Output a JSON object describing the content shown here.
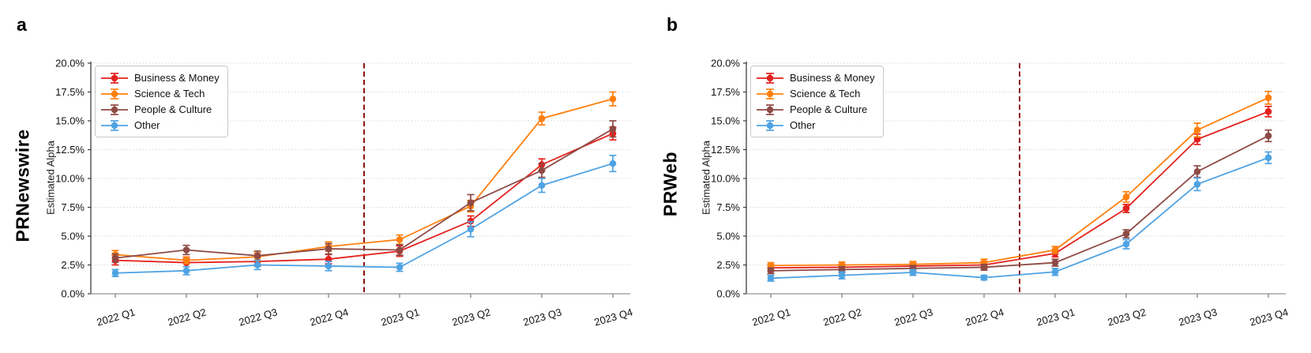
{
  "figure": {
    "background": "#ffffff",
    "panels": [
      {
        "panel_label": "a",
        "row_label": "PRNewswire"
      },
      {
        "panel_label": "b",
        "row_label": "PRWeb"
      }
    ]
  },
  "chart_data": [
    {
      "type": "line",
      "panel": "a",
      "title": "PRNewswire",
      "ylabel": "Estimated Alpha",
      "xlabel": "",
      "ylim": [
        0,
        20
      ],
      "grid": "horizontal-dotted",
      "legend_position": "upper-left",
      "x_tick_rotation_deg": -16,
      "yticks": [
        {
          "value": 0,
          "label": "0.0%"
        },
        {
          "value": 2.5,
          "label": "2.5%"
        },
        {
          "value": 5,
          "label": "5.0%"
        },
        {
          "value": 7.5,
          "label": "7.5%"
        },
        {
          "value": 10,
          "label": "10.0%"
        },
        {
          "value": 12.5,
          "label": "12.5%"
        },
        {
          "value": 15,
          "label": "15.0%"
        },
        {
          "value": 17.5,
          "label": "17.5%"
        },
        {
          "value": 20,
          "label": "20.0%"
        }
      ],
      "categories": [
        "2022 Q1",
        "2022 Q2",
        "2022 Q3",
        "2022 Q4",
        "2023 Q1",
        "2023 Q2",
        "2023 Q3",
        "2023 Q4"
      ],
      "vline": {
        "x_index": 3.5,
        "between": [
          "2022 Q4",
          "2023 Q1"
        ],
        "color": "#8b1111",
        "style": "dashed"
      },
      "series": [
        {
          "name": "Business & Money",
          "color": "#e3211d",
          "values": [
            2.9,
            2.7,
            2.8,
            3.0,
            3.7,
            6.3,
            11.2,
            13.9
          ],
          "errors": [
            0.4,
            0.35,
            0.4,
            0.4,
            0.45,
            0.45,
            0.5,
            0.55
          ]
        },
        {
          "name": "Science & Tech",
          "color": "#ff7f0e",
          "values": [
            3.4,
            2.9,
            3.2,
            4.1,
            4.7,
            7.6,
            15.2,
            16.9
          ],
          "errors": [
            0.35,
            0.3,
            0.35,
            0.4,
            0.4,
            0.5,
            0.55,
            0.6
          ]
        },
        {
          "name": "People & Culture",
          "color": "#8e4a45",
          "values": [
            3.1,
            3.8,
            3.3,
            3.9,
            3.8,
            7.9,
            10.7,
            14.3
          ],
          "errors": [
            0.35,
            0.4,
            0.4,
            0.45,
            0.45,
            0.7,
            0.6,
            0.7
          ]
        },
        {
          "name": "Other",
          "color": "#4fa3e3",
          "values": [
            1.8,
            2.0,
            2.5,
            2.4,
            2.3,
            5.6,
            9.4,
            11.3
          ],
          "errors": [
            0.3,
            0.35,
            0.4,
            0.4,
            0.35,
            0.65,
            0.6,
            0.7
          ]
        }
      ]
    },
    {
      "type": "line",
      "panel": "b",
      "title": "PRWeb",
      "ylabel": "Estimated Alpha",
      "xlabel": "",
      "ylim": [
        0,
        20
      ],
      "grid": "horizontal-dotted",
      "legend_position": "upper-left",
      "x_tick_rotation_deg": -16,
      "yticks": [
        {
          "value": 0,
          "label": "0.0%"
        },
        {
          "value": 2.5,
          "label": "2.5%"
        },
        {
          "value": 5,
          "label": "5.0%"
        },
        {
          "value": 7.5,
          "label": "7.5%"
        },
        {
          "value": 10,
          "label": "10.0%"
        },
        {
          "value": 12.5,
          "label": "12.5%"
        },
        {
          "value": 15,
          "label": "15.0%"
        },
        {
          "value": 17.5,
          "label": "17.5%"
        },
        {
          "value": 20,
          "label": "20.0%"
        }
      ],
      "categories": [
        "2022 Q1",
        "2022 Q2",
        "2022 Q3",
        "2022 Q4",
        "2023 Q1",
        "2023 Q2",
        "2023 Q3",
        "2023 Q4"
      ],
      "vline": {
        "x_index": 3.5,
        "between": [
          "2022 Q4",
          "2023 Q1"
        ],
        "color": "#8b1111",
        "style": "dashed"
      },
      "series": [
        {
          "name": "Business & Money",
          "color": "#e3211d",
          "values": [
            2.25,
            2.3,
            2.4,
            2.5,
            3.5,
            7.4,
            13.4,
            15.8
          ],
          "errors": [
            0.25,
            0.25,
            0.25,
            0.3,
            0.3,
            0.35,
            0.45,
            0.45
          ]
        },
        {
          "name": "Science & Tech",
          "color": "#ff7f0e",
          "values": [
            2.45,
            2.5,
            2.55,
            2.7,
            3.8,
            8.4,
            14.2,
            17.0
          ],
          "errors": [
            0.25,
            0.25,
            0.25,
            0.3,
            0.3,
            0.45,
            0.6,
            0.55
          ]
        },
        {
          "name": "People & Culture",
          "color": "#8e4a45",
          "values": [
            2.0,
            2.1,
            2.2,
            2.3,
            2.7,
            5.2,
            10.6,
            13.7
          ],
          "errors": [
            0.25,
            0.25,
            0.25,
            0.25,
            0.3,
            0.35,
            0.5,
            0.5
          ]
        },
        {
          "name": "Other",
          "color": "#4fa3e3",
          "values": [
            1.35,
            1.6,
            1.85,
            1.4,
            1.9,
            4.3,
            9.5,
            11.8
          ],
          "errors": [
            0.25,
            0.3,
            0.25,
            0.2,
            0.3,
            0.4,
            0.55,
            0.5
          ]
        }
      ]
    }
  ]
}
